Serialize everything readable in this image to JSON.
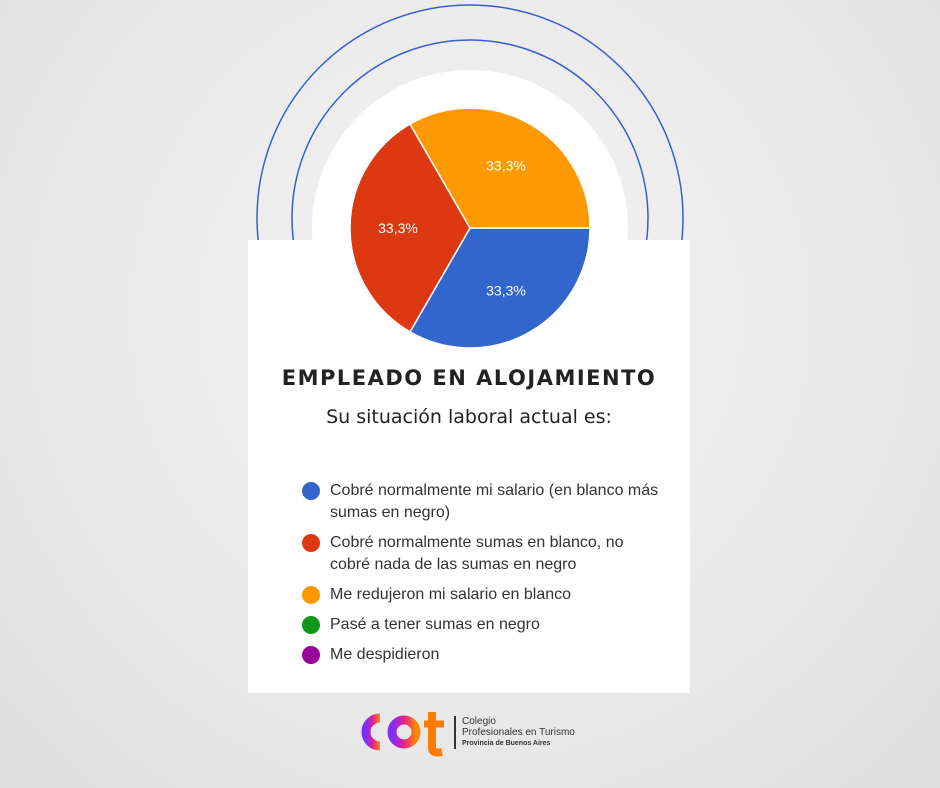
{
  "chart_data": {
    "type": "pie",
    "title": "EMPLEADO EN ALOJAMIENTO",
    "subtitle": "Su situación laboral actual es:",
    "slices": [
      {
        "label": "Cobré normalmente mi salario (en blanco más sumas en negro)",
        "value": 33.3,
        "data_label": "33,3%",
        "color": "#3366cc"
      },
      {
        "label": "Cobré normalmente sumas en blanco, no cobré nada de las sumas en negro",
        "value": 33.3,
        "data_label": "33,3%",
        "color": "#dc3912"
      },
      {
        "label": "Me redujeron mi salario en blanco",
        "value": 33.3,
        "data_label": "33,3%",
        "color": "#ff9900"
      },
      {
        "label": "Pasé a tener sumas en negro",
        "value": 0,
        "data_label": "",
        "color": "#109618"
      },
      {
        "label": "Me despidieron",
        "value": 0,
        "data_label": "",
        "color": "#990099"
      }
    ],
    "legend_position": "bottom"
  },
  "logo": {
    "mark": "cpt",
    "line1": "Colegio",
    "line2": "Profesionales en Turismo",
    "line3": "Provincia de Buenos Aires"
  },
  "colors": {
    "ring": "#3a5fcd"
  }
}
